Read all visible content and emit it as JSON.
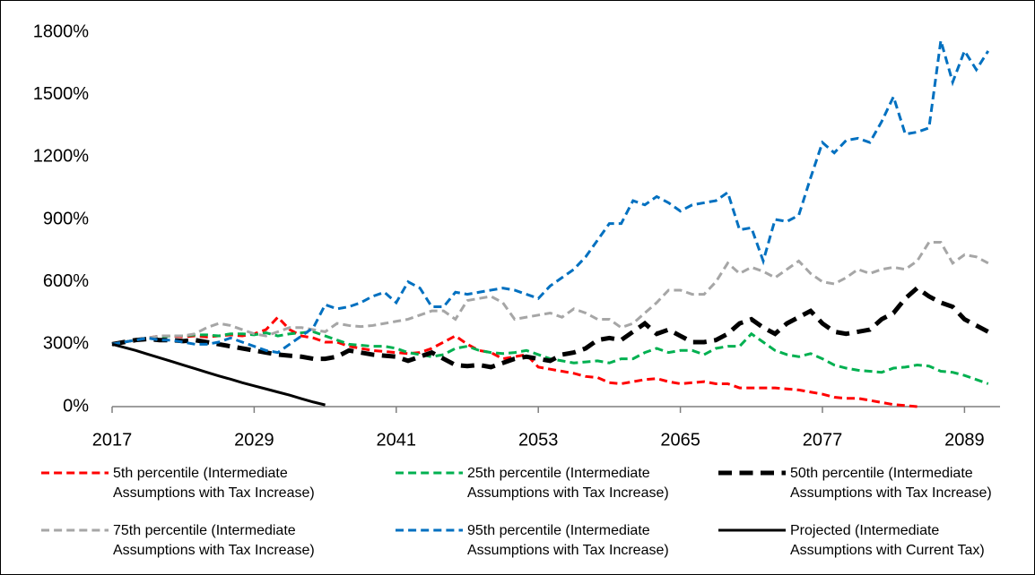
{
  "chart_data": {
    "type": "line",
    "x": [
      2017,
      2018,
      2019,
      2020,
      2021,
      2022,
      2023,
      2024,
      2025,
      2026,
      2027,
      2028,
      2029,
      2030,
      2031,
      2032,
      2033,
      2034,
      2035,
      2036,
      2037,
      2038,
      2039,
      2040,
      2041,
      2042,
      2043,
      2044,
      2045,
      2046,
      2047,
      2048,
      2049,
      2050,
      2051,
      2052,
      2053,
      2054,
      2055,
      2056,
      2057,
      2058,
      2059,
      2060,
      2061,
      2062,
      2063,
      2064,
      2065,
      2066,
      2067,
      2068,
      2069,
      2070,
      2071,
      2072,
      2073,
      2074,
      2075,
      2076,
      2077,
      2078,
      2079,
      2080,
      2081,
      2082,
      2083,
      2084,
      2085,
      2086,
      2087,
      2088,
      2089,
      2090,
      2091
    ],
    "xlim": [
      2017,
      2092
    ],
    "xticks": [
      2017,
      2029,
      2041,
      2053,
      2065,
      2077,
      2089
    ],
    "ylim": [
      0,
      1800
    ],
    "yticks": [
      {
        "value": 0,
        "label": "0%"
      },
      {
        "value": 300,
        "label": "300%"
      },
      {
        "value": 600,
        "label": "600%"
      },
      {
        "value": 900,
        "label": "900%"
      },
      {
        "value": 1200,
        "label": "1200%"
      },
      {
        "value": 1500,
        "label": "1500%"
      },
      {
        "value": 1800,
        "label": "1800%"
      }
    ],
    "grid": false,
    "series": [
      {
        "name": "5th percentile (Intermediate Assumptions with Tax Increase)",
        "color": "#ff0000",
        "dashed": true,
        "line_width": 3,
        "values": [
          300,
          310,
          320,
          330,
          340,
          340,
          335,
          340,
          335,
          340,
          345,
          340,
          350,
          370,
          430,
          370,
          340,
          330,
          310,
          310,
          290,
          280,
          270,
          265,
          260,
          255,
          260,
          280,
          310,
          340,
          300,
          270,
          260,
          230,
          240,
          250,
          190,
          180,
          170,
          160,
          145,
          140,
          115,
          110,
          120,
          130,
          135,
          120,
          110,
          115,
          120,
          110,
          110,
          90,
          90,
          90,
          90,
          85,
          80,
          70,
          60,
          45,
          40,
          40,
          30,
          20,
          10,
          5,
          0,
          null,
          null,
          null,
          null,
          null,
          null
        ]
      },
      {
        "name": "25th percentile (Intermediate Assumptions with Tax Increase)",
        "color": "#00b050",
        "dashed": true,
        "line_width": 3,
        "values": [
          300,
          310,
          320,
          330,
          335,
          340,
          340,
          345,
          345,
          340,
          350,
          350,
          345,
          355,
          340,
          350,
          355,
          360,
          340,
          320,
          300,
          295,
          290,
          290,
          280,
          260,
          250,
          240,
          250,
          280,
          290,
          270,
          260,
          255,
          260,
          270,
          250,
          230,
          220,
          210,
          215,
          220,
          210,
          230,
          230,
          260,
          280,
          260,
          270,
          270,
          250,
          280,
          290,
          290,
          350,
          310,
          270,
          250,
          240,
          255,
          230,
          200,
          185,
          175,
          170,
          165,
          185,
          190,
          200,
          195,
          170,
          165,
          150,
          130,
          110
        ]
      },
      {
        "name": "50th percentile (Intermediate Assumptions with Tax Increase)",
        "color": "#000000",
        "dashed": true,
        "line_width": 5,
        "values": [
          300,
          310,
          320,
          325,
          320,
          320,
          315,
          320,
          310,
          300,
          290,
          280,
          270,
          260,
          250,
          245,
          240,
          230,
          230,
          240,
          270,
          260,
          250,
          245,
          240,
          220,
          240,
          260,
          230,
          200,
          195,
          200,
          190,
          210,
          230,
          240,
          230,
          220,
          250,
          260,
          280,
          320,
          330,
          320,
          360,
          400,
          350,
          370,
          340,
          310,
          310,
          320,
          350,
          400,
          420,
          380,
          350,
          400,
          430,
          460,
          400,
          360,
          350,
          360,
          370,
          420,
          450,
          520,
          570,
          530,
          500,
          480,
          420,
          390,
          360
        ]
      },
      {
        "name": "75th percentile (Intermediate Assumptions with Tax Increase)",
        "color": "#a6a6a6",
        "dashed": true,
        "line_width": 3,
        "values": [
          300,
          310,
          320,
          330,
          340,
          340,
          340,
          350,
          380,
          400,
          390,
          370,
          350,
          340,
          360,
          380,
          380,
          370,
          360,
          400,
          390,
          385,
          390,
          400,
          410,
          420,
          440,
          460,
          460,
          420,
          510,
          520,
          530,
          500,
          420,
          430,
          440,
          450,
          430,
          470,
          450,
          420,
          420,
          380,
          400,
          450,
          500,
          560,
          560,
          540,
          540,
          600,
          690,
          640,
          670,
          650,
          620,
          660,
          700,
          640,
          600,
          590,
          620,
          660,
          640,
          660,
          670,
          660,
          700,
          790,
          790,
          690,
          730,
          720,
          690
        ]
      },
      {
        "name": "95th percentile (Intermediate Assumptions with Tax Increase)",
        "color": "#0070c0",
        "dashed": true,
        "line_width": 3,
        "values": [
          300,
          310,
          320,
          330,
          320,
          320,
          310,
          300,
          300,
          310,
          330,
          310,
          290,
          270,
          260,
          300,
          340,
          380,
          490,
          470,
          480,
          500,
          530,
          550,
          500,
          600,
          570,
          480,
          480,
          550,
          540,
          550,
          560,
          570,
          560,
          540,
          520,
          580,
          620,
          660,
          720,
          800,
          880,
          880,
          990,
          970,
          1010,
          980,
          940,
          970,
          980,
          990,
          1030,
          850,
          860,
          700,
          900,
          890,
          920,
          1100,
          1270,
          1220,
          1280,
          1290,
          1270,
          1370,
          1490,
          1310,
          1320,
          1340,
          1760,
          1560,
          1710,
          1620,
          1710
        ]
      },
      {
        "name": "Projected (Intermediate Assumptions with Current Tax)",
        "color": "#000000",
        "dashed": false,
        "line_width": 3,
        "values": [
          300,
          285,
          270,
          252,
          235,
          218,
          200,
          183,
          165,
          148,
          132,
          115,
          100,
          85,
          70,
          55,
          38,
          22,
          8,
          null,
          null,
          null,
          null,
          null,
          null,
          null,
          null,
          null,
          null,
          null,
          null,
          null,
          null,
          null,
          null,
          null,
          null,
          null,
          null,
          null,
          null,
          null,
          null,
          null,
          null,
          null,
          null,
          null,
          null,
          null,
          null,
          null,
          null,
          null,
          null,
          null,
          null,
          null,
          null,
          null,
          null,
          null,
          null,
          null,
          null,
          null,
          null,
          null,
          null,
          null,
          null,
          null,
          null,
          null,
          null
        ]
      }
    ]
  }
}
